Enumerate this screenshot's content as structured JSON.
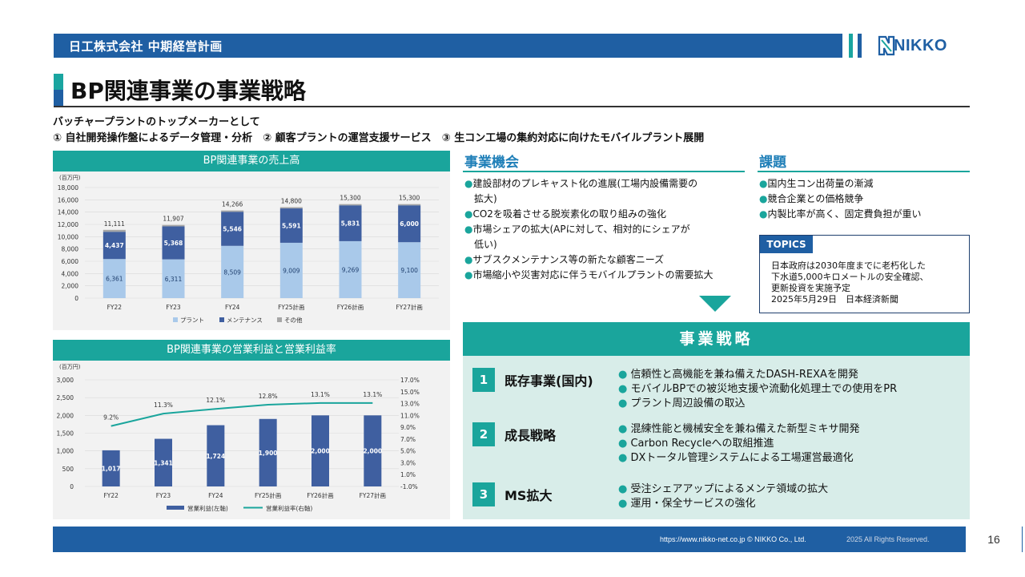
{
  "header": {
    "company_plan": "日工株式会社 中期経営計画",
    "logo_text": "NIKKO"
  },
  "page_title": "BP関連事業の事業戦略",
  "intro": {
    "line1": "バッチャープラントのトップメーカーとして",
    "line2": "① 自社開発操作盤によるデータ管理・分析　② 顧客プラントの運営支援サービス　③ 生コン工場の集約対応に向けたモバイルプラント展開"
  },
  "sales_chart": {
    "panel_title": "BP関連事業の売上高"
  },
  "profit_chart": {
    "panel_title": "BP関連事業の営業利益と営業利益率"
  },
  "chart_data": [
    {
      "type": "bar",
      "stacked": true,
      "unit_label": "(百万円)",
      "categories": [
        "FY22",
        "FY23",
        "FY24",
        "FY25計画",
        "FY26計画",
        "FY27計画"
      ],
      "series": [
        {
          "name": "プラント",
          "values": [
            6361,
            6311,
            8509,
            9009,
            9269,
            9100
          ],
          "color": "#a9c9ea"
        },
        {
          "name": "メンテナンス",
          "values": [
            4437,
            5368,
            5546,
            5591,
            5831,
            6000
          ],
          "color": "#3f5fa0"
        },
        {
          "name": "その他",
          "values": [
            313,
            228,
            211,
            200,
            200,
            200
          ],
          "color": "#a6a6a6"
        }
      ],
      "totals": [
        11111,
        11907,
        14266,
        14800,
        15300,
        15300
      ],
      "ylim": [
        0,
        18000
      ],
      "yticks": [
        "0",
        "2,000",
        "4,000",
        "6,000",
        "8,000",
        "10,000",
        "12,000",
        "14,000",
        "16,000",
        "18,000"
      ],
      "plant_labels": [
        "6,361",
        "6,311",
        "8,509",
        "9,009",
        "9,269",
        "9,100"
      ],
      "maint_labels": [
        "4,437",
        "5,368",
        "5,546",
        "5,591",
        "5,831",
        "6,000"
      ],
      "total_labels": [
        "11,111",
        "11,907",
        "14,266",
        "14,800",
        "15,300",
        "15,300"
      ],
      "legend": [
        "プラント",
        "メンテナンス",
        "その他"
      ],
      "legend_position": "bottom",
      "grid": true
    },
    {
      "type": "bar+line",
      "unit_label": "(百万円)",
      "categories": [
        "FY22",
        "FY23",
        "FY24",
        "FY25計画",
        "FY26計画",
        "FY27計画"
      ],
      "series": [
        {
          "name": "営業利益(左軸)",
          "type": "bar",
          "values": [
            1017,
            1341,
            1724,
            1900,
            2000,
            2000
          ],
          "color": "#3f5fa0"
        },
        {
          "name": "営業利益率(右軸)",
          "type": "line",
          "values": [
            9.2,
            11.3,
            12.1,
            12.8,
            13.1,
            13.1
          ],
          "color": "#1aa59c"
        }
      ],
      "bar_labels": [
        "1,017",
        "1,341",
        "1,724",
        "1,900",
        "2,000",
        "2,000"
      ],
      "line_labels": [
        "9.2%",
        "11.3%",
        "12.1%",
        "12.8%",
        "13.1%",
        "13.1%"
      ],
      "ylim_left": [
        0,
        3000
      ],
      "yticks_left": [
        "0",
        "500",
        "1,000",
        "1,500",
        "2,000",
        "2,500",
        "3,000"
      ],
      "ylim_right": [
        -1.0,
        17.0
      ],
      "yticks_right": [
        "-1.0%",
        "1.0%",
        "3.0%",
        "5.0%",
        "7.0%",
        "9.0%",
        "11.0%",
        "13.0%",
        "15.0%",
        "17.0%"
      ],
      "legend": [
        "営業利益(左軸)",
        "営業利益率(右軸)"
      ],
      "legend_position": "bottom",
      "grid": true
    }
  ],
  "opportunities": {
    "title": "事業機会",
    "items": [
      {
        "line1": "建設部材のプレキャスト化の進展(工場内設備需要の",
        "line2": "拡大)"
      },
      {
        "line1": "CO2を吸着させる脱炭素化の取り組みの強化",
        "line2": ""
      },
      {
        "line1": "市場シェアの拡大(APに対して、相対的にシェアが",
        "line2": "低い)"
      },
      {
        "line1": "サブスクメンテナンス等の新たな顧客ニーズ",
        "line2": ""
      },
      {
        "line1": "市場縮小や災害対応に伴うモバイルプラントの需要拡大",
        "line2": ""
      }
    ]
  },
  "issues": {
    "title": "課題",
    "items": [
      "国内生コン出荷量の漸減",
      "競合企業との価格競争",
      "内製比率が高く、固定費負担が重い"
    ]
  },
  "topics": {
    "label": "TOPICS",
    "line1": "日本政府は2030年度までに老朽化した",
    "line2": "下水道5,000キロメートルの安全確認、",
    "line3": "更新投資を実施予定",
    "line4": "2025年5月29日　日本経済新聞"
  },
  "strategy": {
    "title": "事業戦略",
    "rows": [
      {
        "num": "1",
        "title": "既存事業(国内)",
        "items": [
          "信頼性と高機能を兼ね備えたDASH-REXAを開発",
          "モバイルBPでの被災地支援や流動化処理土での使用をPR",
          "プラント周辺設備の取込"
        ]
      },
      {
        "num": "2",
        "title": "成長戦略",
        "items": [
          "混練性能と機械安全を兼ね備えた新型ミキサ開発",
          "Carbon Recycleへの取組推進",
          "DXトータル管理システムによる工場運営最適化"
        ]
      },
      {
        "num": "3",
        "title": "MS拡大",
        "items": [
          "受注シェアアップによるメンテ領域の拡大",
          "運用・保全サービスの強化"
        ]
      }
    ]
  },
  "footer": {
    "url": "https://www.nikko-net.co.jp © NIKKO Co., Ltd.",
    "rights": "2025 All Rights Reserved.",
    "page": "16"
  }
}
